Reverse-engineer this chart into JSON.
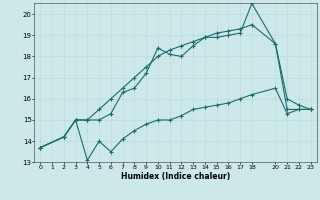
{
  "xlabel": "Humidex (Indice chaleur)",
  "background_color": "#cce8e8",
  "grid_color": "#b8d8d8",
  "line_color": "#1a6b6b",
  "xlim": [
    -0.5,
    23.5
  ],
  "ylim": [
    13,
    20.5
  ],
  "xticks": [
    0,
    1,
    2,
    3,
    4,
    5,
    6,
    7,
    8,
    9,
    10,
    11,
    12,
    13,
    14,
    15,
    16,
    17,
    18,
    20,
    21,
    22,
    23
  ],
  "yticks": [
    13,
    14,
    15,
    16,
    17,
    18,
    19,
    20
  ],
  "line_bottom_x": [
    0,
    2,
    3,
    4,
    5,
    6,
    7,
    8,
    9,
    10,
    11,
    12,
    13,
    14,
    15,
    16,
    17,
    18,
    20,
    21,
    22,
    23
  ],
  "line_bottom_y": [
    13.7,
    14.2,
    15.0,
    13.1,
    14.0,
    13.5,
    14.1,
    14.5,
    14.8,
    15.0,
    15.0,
    15.2,
    15.5,
    15.6,
    15.7,
    15.8,
    16.0,
    16.2,
    16.5,
    15.3,
    15.5,
    15.5
  ],
  "line_mid_x": [
    0,
    2,
    3,
    4,
    5,
    6,
    7,
    8,
    9,
    10,
    11,
    12,
    13,
    14,
    15,
    16,
    17,
    18,
    20,
    21,
    22,
    23
  ],
  "line_mid_y": [
    13.7,
    14.2,
    15.0,
    15.0,
    15.0,
    15.3,
    16.3,
    16.5,
    17.2,
    18.4,
    18.1,
    18.0,
    18.5,
    18.9,
    18.9,
    19.0,
    19.1,
    20.5,
    18.6,
    16.0,
    15.7,
    15.5
  ],
  "line_top_x": [
    0,
    2,
    3,
    4,
    5,
    6,
    7,
    8,
    9,
    10,
    11,
    12,
    13,
    14,
    15,
    16,
    17,
    18,
    20,
    21,
    22,
    23
  ],
  "line_top_y": [
    13.7,
    14.2,
    15.0,
    15.0,
    15.5,
    16.0,
    16.5,
    17.0,
    17.5,
    18.0,
    18.3,
    18.5,
    18.7,
    18.9,
    19.1,
    19.2,
    19.3,
    19.5,
    18.6,
    15.5,
    15.5,
    15.5
  ]
}
